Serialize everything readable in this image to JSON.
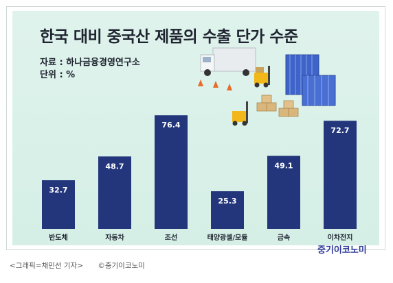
{
  "header": {
    "title": "한국 대비 중국산 제품의 수출 단가 수준",
    "source": "자료 : 하나금융경영연구소",
    "unit": "단위 : %"
  },
  "brand": "중기이코노미",
  "footer": {
    "credit": "<그래픽=채민선 기자>",
    "copyright": "©중기이코노미"
  },
  "colors": {
    "bar": "#23367c",
    "background": "#d9f1e8",
    "value_text": "#ffffff"
  },
  "chart_data": {
    "type": "bar",
    "title": "한국 대비 중국산 제품의 수출 단가 수준",
    "categories": [
      "반도체",
      "자동차",
      "조선",
      "태양광셀/모듈",
      "금속",
      "이차전지"
    ],
    "values": [
      32.7,
      48.7,
      76.4,
      25.3,
      49.1,
      72.7
    ],
    "xlabel": "",
    "ylabel": "",
    "ylim": [
      0,
      80
    ],
    "grid": false,
    "legend": "none"
  }
}
